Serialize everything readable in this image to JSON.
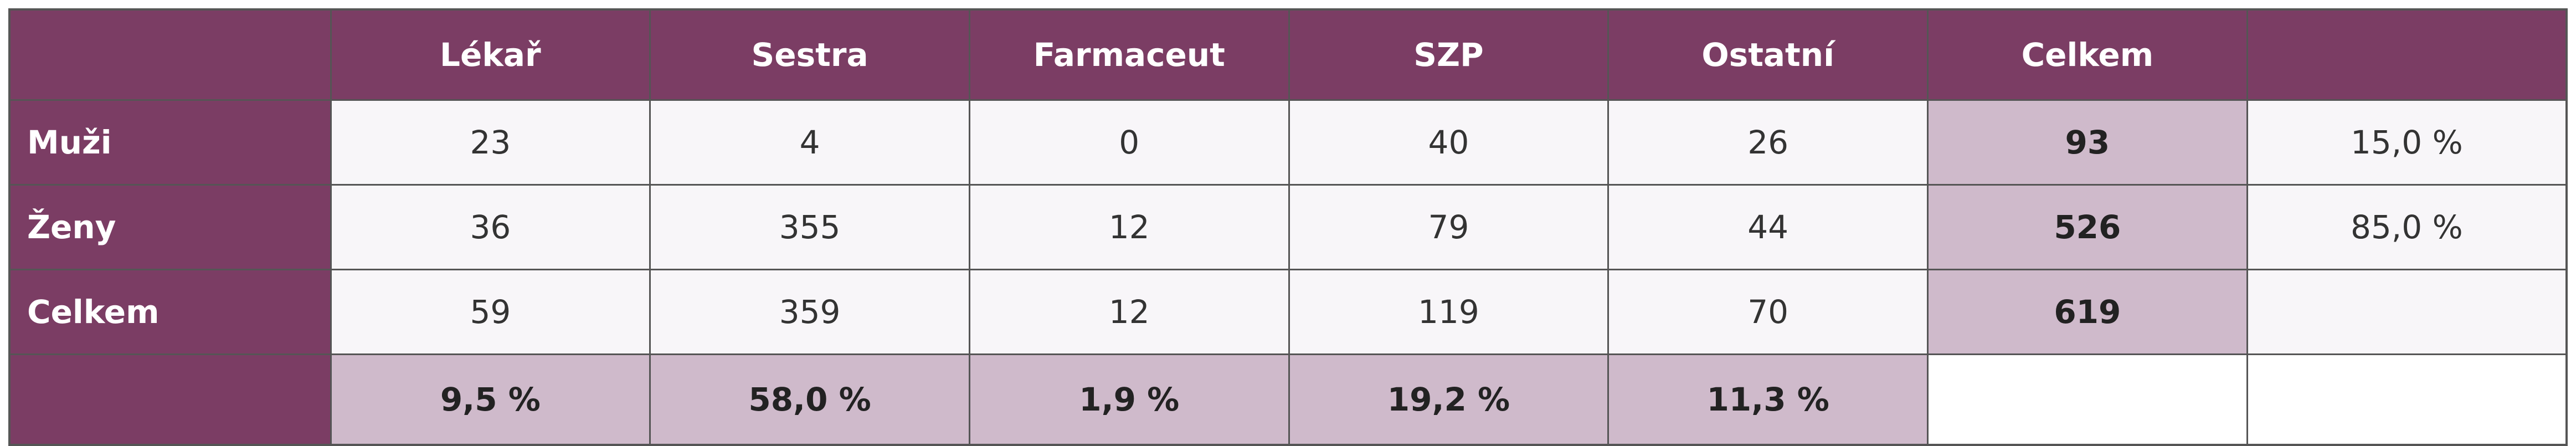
{
  "table": {
    "columns": [
      "Lékař",
      "Sestra",
      "Farmaceut",
      "SZP",
      "Ostatní",
      "Celkem"
    ],
    "rows": [
      {
        "label": "Muži",
        "cells": [
          23,
          4,
          0,
          40,
          26
        ],
        "total": 93,
        "share": "15,0 %"
      },
      {
        "label": "Ženy",
        "cells": [
          36,
          355,
          12,
          79,
          44
        ],
        "total": 526,
        "share": "85,0 %"
      },
      {
        "label": "Celkem",
        "cells": [
          59,
          359,
          12,
          119,
          70
        ],
        "total": 619
      }
    ],
    "column_shares": [
      "9,5 %",
      "58,0 %",
      "1,9 %",
      "19,2 %",
      "11,3 %"
    ]
  }
}
